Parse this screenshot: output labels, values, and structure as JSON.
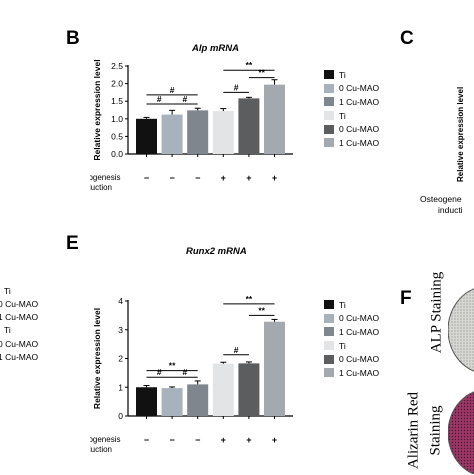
{
  "panel_letters": {
    "b": "B",
    "c": "C",
    "e": "E",
    "f": "F"
  },
  "left_fragments": [
    "Ti",
    "0 Cu-MAO",
    "1 Cu-MAO",
    "Ti",
    "0 Cu-MAO",
    "1 Cu-MAO"
  ],
  "right_fragments": {
    "ylabel": "Relative expression level",
    "xlabel_line1": "Osteogene",
    "xlabel_line2": "inducti"
  },
  "legend": {
    "items": [
      {
        "label": "Ti",
        "color": "#111111"
      },
      {
        "label": "0 Cu-MAO",
        "color": "#a8b2bc"
      },
      {
        "label": "1 Cu-MAO",
        "color": "#7f868d"
      },
      {
        "label": "Ti",
        "color": "#e2e4e6"
      },
      {
        "label": "0 Cu-MAO",
        "color": "#5b5d5f"
      },
      {
        "label": "1 Cu-MAO",
        "color": "#a3a9ae"
      }
    ]
  },
  "staining": {
    "alp": "ALP Staining",
    "alizarin_line1": "Alizarin Red",
    "alizarin_line2": "Staining",
    "alp_color": "#dcdcda",
    "alizarin_color": "#8c2f5b"
  },
  "chart_data": [
    {
      "type": "bar",
      "title": "Alp mRNA",
      "ylabel": "Relative expression level",
      "xlabel_line1": "Osteogenesis",
      "xlabel_line2": "induction",
      "ylim": [
        0,
        2.5
      ],
      "yticks": [
        "0.0",
        "0.5",
        "1.0",
        "1.5",
        "2.0",
        "2.5"
      ],
      "categories": [
        "−",
        "−",
        "−",
        "+",
        "+",
        "+"
      ],
      "values": [
        1.0,
        1.12,
        1.24,
        1.22,
        1.58,
        1.97
      ],
      "errors": [
        0.04,
        0.12,
        0.06,
        0.07,
        0.03,
        0.14
      ],
      "colors": [
        "#111111",
        "#a8b2bc",
        "#7f868d",
        "#e2e4e6",
        "#5b5d5f",
        "#a3a9ae"
      ],
      "significance": [
        {
          "from": 0,
          "to": 2,
          "y": 1.68,
          "label": "#"
        },
        {
          "from": 0,
          "to": 1,
          "y": 1.42,
          "label": "#"
        },
        {
          "from": 1,
          "to": 2,
          "y": 1.42,
          "label": "#"
        },
        {
          "from": 3,
          "to": 4,
          "y": 1.75,
          "label": "#"
        },
        {
          "from": 3,
          "to": 5,
          "y": 2.38,
          "label": "**"
        },
        {
          "from": 4,
          "to": 5,
          "y": 2.17,
          "label": "**"
        }
      ]
    },
    {
      "type": "bar",
      "title": "Runx2 mRNA",
      "ylabel": "Relative expression level",
      "xlabel_line1": "Osteogenesis",
      "xlabel_line2": "induction",
      "ylim": [
        0,
        4
      ],
      "yticks": [
        "0",
        "1",
        "2",
        "3",
        "4"
      ],
      "categories": [
        "−",
        "−",
        "−",
        "+",
        "+",
        "+"
      ],
      "values": [
        1.0,
        0.97,
        1.1,
        1.82,
        1.83,
        3.28
      ],
      "errors": [
        0.06,
        0.04,
        0.12,
        0.05,
        0.05,
        0.08
      ],
      "colors": [
        "#111111",
        "#a8b2bc",
        "#7f868d",
        "#e2e4e6",
        "#5b5d5f",
        "#a3a9ae"
      ],
      "significance": [
        {
          "from": 0,
          "to": 1,
          "y": 1.35,
          "label": "#"
        },
        {
          "from": 1,
          "to": 2,
          "y": 1.35,
          "label": "#"
        },
        {
          "from": 0,
          "to": 2,
          "y": 1.58,
          "label": "**"
        },
        {
          "from": 3,
          "to": 4,
          "y": 2.13,
          "label": "#"
        },
        {
          "from": 3,
          "to": 5,
          "y": 3.9,
          "label": "**"
        },
        {
          "from": 4,
          "to": 5,
          "y": 3.5,
          "label": "**"
        }
      ]
    }
  ]
}
